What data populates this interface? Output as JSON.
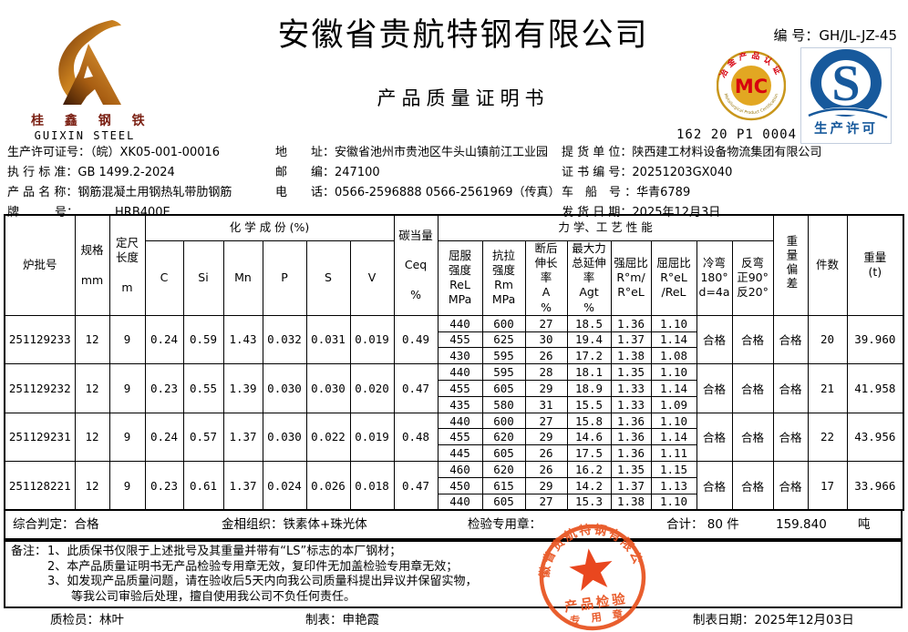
{
  "header": {
    "company_name": "安徽省贵航特钢有限公司",
    "doc_title": "产品质量证明书",
    "doc_no_label": "编 号：",
    "doc_no": "GH/JL-JZ-45",
    "logo": {
      "name_cn": "桂 鑫 钢 铁",
      "name_en": "GUIXIN STEEL"
    },
    "mc_badge": {
      "letters": "MC",
      "ring_top_text": "冶金产品认证",
      "ring_bottom_text": "Metallurgical Product Certification",
      "cert_no": "162 20 P1 0004 L",
      "ring_color": "#c9971c",
      "disc_color": "#e2a722",
      "letter_color": "#d7000f"
    },
    "qs_badge": {
      "letter": "S",
      "caption": "生产许可",
      "color": "#17599c"
    }
  },
  "info": {
    "left": [
      {
        "label": "生产许可证号：",
        "value": "（皖）XK05-001-00016"
      },
      {
        "label": "执 行 标 准：",
        "value": "GB 1499.2-2024"
      },
      {
        "label": "产 品 名 称：",
        "value": "钢筋混凝土用钢热轧带肋钢筋"
      },
      {
        "label": "牌　　　号：",
        "value": "HRB400E"
      }
    ],
    "middle": [
      {
        "label": "地　　址：",
        "value": "安徽省池州市贵池区牛头山镇前江工业园"
      },
      {
        "label": "邮　　编：",
        "value": "247100"
      },
      {
        "label": "电　　话：",
        "value": "0566-2596888  0566-2561969（传真）"
      }
    ],
    "right": [
      {
        "label": "提 货 单 位：",
        "value": "陕西建工材料设备物流集团有限公司"
      },
      {
        "label": "证 书 编 号：",
        "value": "20251203GX040"
      },
      {
        "label": "车　船　号 ：",
        "value": "华青6789"
      },
      {
        "label": "发 货 日 期：",
        "value": "2025年12月3日"
      }
    ]
  },
  "table": {
    "group_headers": {
      "chemical": "化 学 成 份 (%)",
      "mechanical": "力 学、工 艺 性 能"
    },
    "columns": {
      "heat_no": "炉批号",
      "spec": "规格\n\nmm",
      "length": "定尺\n长度\n\nm",
      "chem": [
        "C",
        "Si",
        "Mn",
        "P",
        "S",
        "V"
      ],
      "ceq": "碳当量\n\nCeq\n\n%",
      "mech": [
        "屈服\n强度\nReL\nMPa",
        "抗拉\n强度\nRm\nMPa",
        "断后\n伸长\n率\nA\n%",
        "最大力\n总延伸\n率\nAgt\n%",
        "强屈比\nR°m/\nR°eL",
        "屈屈比\nR°eL\n/ReL",
        "冷弯\n180°\nd=4a",
        "反弯\n正90°\n反20°"
      ],
      "weight_dev": "重量偏差",
      "pieces": "件数",
      "weight": "重量\n(t)"
    },
    "batches": [
      {
        "heat_no": "251129233",
        "spec": "12",
        "length": "9",
        "chem": [
          "0.24",
          "0.59",
          "1.43",
          "0.032",
          "0.031",
          "0.019"
        ],
        "ceq": "0.49",
        "mech": [
          [
            "440",
            "600",
            "27",
            "18.5",
            "1.36",
            "1.10"
          ],
          [
            "455",
            "625",
            "30",
            "19.4",
            "1.37",
            "1.14"
          ],
          [
            "430",
            "595",
            "26",
            "17.2",
            "1.38",
            "1.08"
          ]
        ],
        "cold_bend": "合格",
        "reverse_bend": "合格",
        "weight_dev": "合格",
        "pieces": "20",
        "weight": "39.960"
      },
      {
        "heat_no": "251129232",
        "spec": "12",
        "length": "9",
        "chem": [
          "0.23",
          "0.55",
          "1.39",
          "0.030",
          "0.030",
          "0.020"
        ],
        "ceq": "0.47",
        "mech": [
          [
            "440",
            "595",
            "28",
            "18.1",
            "1.35",
            "1.10"
          ],
          [
            "455",
            "605",
            "29",
            "18.9",
            "1.33",
            "1.14"
          ],
          [
            "435",
            "580",
            "31",
            "15.5",
            "1.33",
            "1.09"
          ]
        ],
        "cold_bend": "合格",
        "reverse_bend": "合格",
        "weight_dev": "合格",
        "pieces": "21",
        "weight": "41.958"
      },
      {
        "heat_no": "251129231",
        "spec": "12",
        "length": "9",
        "chem": [
          "0.24",
          "0.57",
          "1.37",
          "0.030",
          "0.022",
          "0.019"
        ],
        "ceq": "0.48",
        "mech": [
          [
            "440",
            "600",
            "27",
            "15.8",
            "1.36",
            "1.10"
          ],
          [
            "455",
            "620",
            "29",
            "14.6",
            "1.36",
            "1.14"
          ],
          [
            "445",
            "605",
            "26",
            "17.5",
            "1.36",
            "1.11"
          ]
        ],
        "cold_bend": "合格",
        "reverse_bend": "合格",
        "weight_dev": "合格",
        "pieces": "22",
        "weight": "43.956"
      },
      {
        "heat_no": "251128221",
        "spec": "12",
        "length": "9",
        "chem": [
          "0.23",
          "0.61",
          "1.37",
          "0.024",
          "0.026",
          "0.018"
        ],
        "ceq": "0.47",
        "mech": [
          [
            "460",
            "620",
            "26",
            "16.2",
            "1.35",
            "1.15"
          ],
          [
            "450",
            "615",
            "29",
            "14.2",
            "1.37",
            "1.13"
          ],
          [
            "440",
            "605",
            "27",
            "15.3",
            "1.38",
            "1.10"
          ]
        ],
        "cold_bend": "合格",
        "reverse_bend": "合格",
        "weight_dev": "合格",
        "pieces": "17",
        "weight": "33.966"
      }
    ]
  },
  "summary": {
    "judgement_label": "综合判定：",
    "judgement": "合格",
    "structure_label": "金相组织：",
    "structure": "铁素体+珠光体",
    "seal_label": "检验专用章：",
    "total_label": "合计：",
    "total_pieces": "80",
    "pieces_unit": "件",
    "total_weight": "159.840",
    "weight_unit": "吨"
  },
  "notes": {
    "label": "备注：",
    "lines": [
      "1、此质保书仅限于上述批号及其重量并带有“LS”标志的本厂钢材；",
      "2、本产品质量证明书无产品检验专用章无效，复印件无加盖检验专用章无效；",
      "3、如发现产品质量问题，请在验收后5天内向我公司质量科提出异议并保留实物，",
      "　　等我公司审验后处理，擅自使用我公司不负任何责任。"
    ]
  },
  "footer": {
    "inspector_label": "质检员：",
    "inspector": "林叶",
    "tabulator_label": "制表：",
    "tabulator": "申艳霞",
    "date_label": "制表日期：",
    "date": "2025年12月03日"
  },
  "stamp": {
    "ring_text": "安徽省贵航特钢有限公司",
    "line1": "产品检验",
    "line2": "专 用 章",
    "color": "#e8511d",
    "star_color": "#e8380d"
  }
}
